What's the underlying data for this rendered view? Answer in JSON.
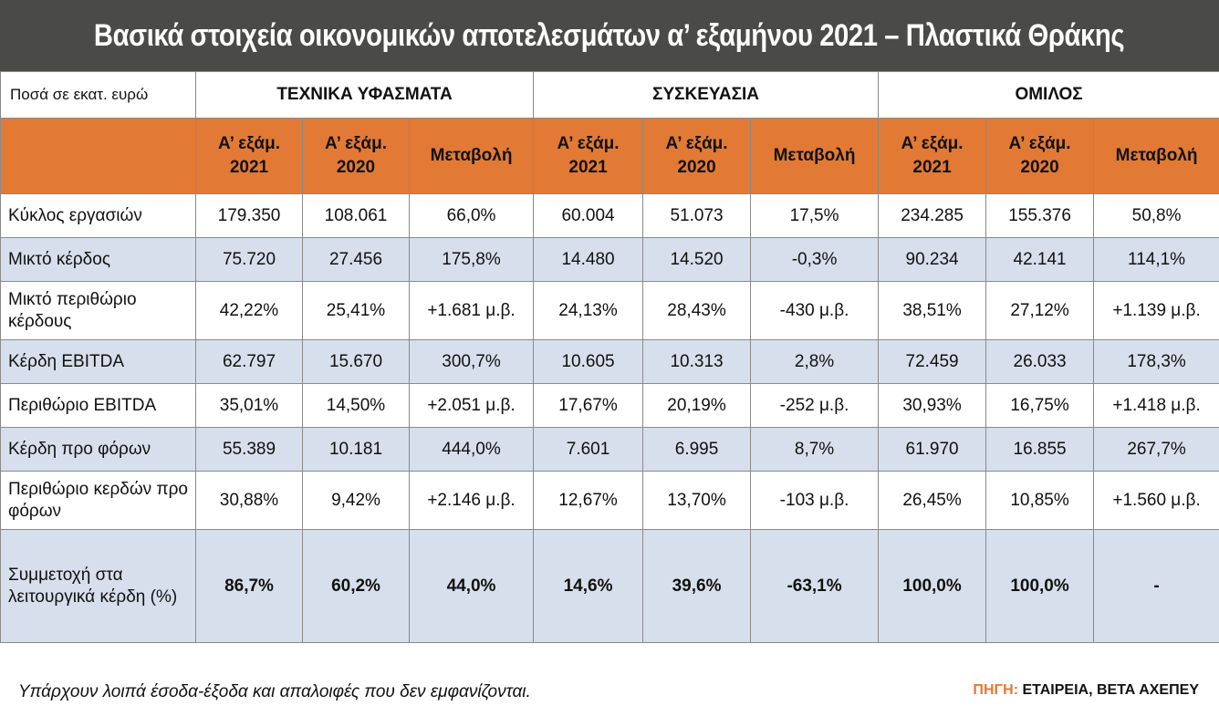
{
  "title": "Βασικά στοιχεία οικονομικών αποτελεσμάτων α’ εξαμήνου 2021 – Πλαστικά Θράκης",
  "table": {
    "unit_label": "Ποσά σε εκατ. ευρώ",
    "groups": [
      "ΤΕΧΝΙΚΑ ΥΦΑΣΜΑΤΑ",
      "ΣΥΣΚΕΥΑΣΙΑ",
      "ΟΜΙΛΟΣ"
    ],
    "subheaders": [
      {
        "line1": "Α’ εξάμ.",
        "line2": "2021"
      },
      {
        "line1": "Α’ εξάμ.",
        "line2": "2020"
      },
      {
        "line1": "Μεταβολή",
        "line2": ""
      }
    ],
    "rows": [
      {
        "label": "Κύκλος εργασιών",
        "values": [
          "179.350",
          "108.061",
          "66,0%",
          "60.004",
          "51.073",
          "17,5%",
          "234.285",
          "155.376",
          "50,8%"
        ]
      },
      {
        "label": "Μικτό κέρδος",
        "values": [
          "75.720",
          "27.456",
          "175,8%",
          "14.480",
          "14.520",
          "-0,3%",
          "90.234",
          "42.141",
          "114,1%"
        ]
      },
      {
        "label": "Μικτό περιθώριο κέρδους",
        "values": [
          "42,22%",
          "25,41%",
          "+1.681 μ.β.",
          "24,13%",
          "28,43%",
          "-430 μ.β.",
          "38,51%",
          "27,12%",
          "+1.139 μ.β."
        ]
      },
      {
        "label": "Κέρδη EBITDA",
        "values": [
          "62.797",
          "15.670",
          "300,7%",
          "10.605",
          "10.313",
          "2,8%",
          "72.459",
          "26.033",
          "178,3%"
        ]
      },
      {
        "label": "Περιθώριο EBITDA",
        "values": [
          "35,01%",
          "14,50%",
          "+2.051 μ.β.",
          "17,67%",
          "20,19%",
          "-252 μ.β.",
          "30,93%",
          "16,75%",
          "+1.418 μ.β."
        ]
      },
      {
        "label": "Κέρδη προ φόρων",
        "values": [
          "55.389",
          "10.181",
          "444,0%",
          "7.601",
          "6.995",
          "8,7%",
          "61.970",
          "16.855",
          "267,7%"
        ]
      },
      {
        "label": "Περιθώριο κερδών προ φόρων",
        "values": [
          "30,88%",
          "9,42%",
          "+2.146 μ.β.",
          "12,67%",
          "13,70%",
          "-103 μ.β.",
          "26,45%",
          "10,85%",
          "+1.560 μ.β."
        ]
      },
      {
        "label": "Συμμετοχή στα λειτουργικά κέρδη (%)",
        "values": [
          "86,7%",
          "60,2%",
          "44,0%",
          "14,6%",
          "39,6%",
          "-63,1%",
          "100,0%",
          "100,0%",
          "-"
        ]
      }
    ]
  },
  "footer": {
    "note": "Υπάρχουν λοιπά έσοδα-έξοδα και απαλοιφές που δεν εμφανίζονται.",
    "source_label": "ΠΗΓΗ:",
    "source_value": "ΕΤΑΙΡΕΙΑ, ΒΕΤΑ ΑΧΕΠΕΥ"
  },
  "colors": {
    "title_bg": "#4a4a48",
    "header_orange": "#e27a35",
    "row_blue": "#d7dfec"
  }
}
